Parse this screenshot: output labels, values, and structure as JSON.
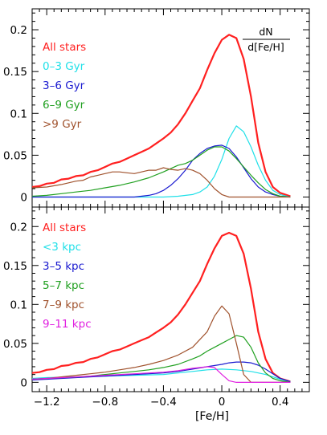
{
  "ylabel": {
    "numerator": "dN",
    "denominator": "d[Fe/H]"
  },
  "xlabel": "[Fe/H]",
  "chart_data": [
    {
      "type": "line",
      "xlim": [
        -1.3,
        0.6
      ],
      "ylim": [
        -0.012,
        0.225
      ],
      "xticks": [
        -1.2,
        -0.8,
        -0.4,
        0,
        0.4
      ],
      "xtick_labels": [
        "",
        "",
        "",
        "",
        ""
      ],
      "yticks": [
        0,
        0.05,
        0.1,
        0.15,
        0.2
      ],
      "ytick_labels": [
        "0",
        "0.05",
        "0.1",
        "0.15",
        "0.2"
      ],
      "legend": [
        {
          "label": "All stars",
          "color": "#ff2020"
        },
        {
          "label": "0–3 Gyr",
          "color": "#20e0e8"
        },
        {
          "label": "3–6 Gyr",
          "color": "#1a1ad0"
        },
        {
          "label": "6–9 Gyr",
          "color": "#20a020"
        },
        {
          "label": ">9 Gyr",
          "color": "#a0522d"
        }
      ],
      "series": [
        {
          "name": "All stars",
          "color": "#ff2020",
          "width": 2.2,
          "x": [
            -1.3,
            -1.25,
            -1.2,
            -1.15,
            -1.1,
            -1.05,
            -1.0,
            -0.95,
            -0.9,
            -0.85,
            -0.8,
            -0.75,
            -0.7,
            -0.65,
            -0.6,
            -0.55,
            -0.5,
            -0.45,
            -0.4,
            -0.35,
            -0.3,
            -0.25,
            -0.2,
            -0.15,
            -0.1,
            -0.05,
            0.0,
            0.05,
            0.1,
            0.15,
            0.2,
            0.25,
            0.3,
            0.35,
            0.4,
            0.47
          ],
          "y": [
            0.012,
            0.013,
            0.016,
            0.017,
            0.021,
            0.022,
            0.025,
            0.026,
            0.03,
            0.032,
            0.036,
            0.04,
            0.042,
            0.046,
            0.05,
            0.054,
            0.058,
            0.064,
            0.07,
            0.077,
            0.087,
            0.1,
            0.115,
            0.13,
            0.152,
            0.172,
            0.188,
            0.194,
            0.19,
            0.165,
            0.12,
            0.065,
            0.03,
            0.012,
            0.005,
            0.001
          ]
        },
        {
          "name": "0–3 Gyr",
          "color": "#20e0e8",
          "width": 1.2,
          "x": [
            -1.3,
            -0.4,
            -0.3,
            -0.2,
            -0.15,
            -0.1,
            -0.05,
            0.0,
            0.05,
            0.1,
            0.15,
            0.2,
            0.25,
            0.3,
            0.35,
            0.4,
            0.47
          ],
          "y": [
            0.0,
            0.0,
            0.001,
            0.003,
            0.006,
            0.012,
            0.025,
            0.045,
            0.07,
            0.085,
            0.078,
            0.06,
            0.038,
            0.02,
            0.008,
            0.003,
            0.0
          ]
        },
        {
          "name": "3–6 Gyr",
          "color": "#1a1ad0",
          "width": 1.2,
          "x": [
            -1.3,
            -0.6,
            -0.5,
            -0.45,
            -0.4,
            -0.35,
            -0.3,
            -0.25,
            -0.2,
            -0.15,
            -0.1,
            -0.05,
            0.0,
            0.05,
            0.1,
            0.15,
            0.2,
            0.25,
            0.3,
            0.35,
            0.4,
            0.47
          ],
          "y": [
            0.0,
            0.0,
            0.002,
            0.004,
            0.008,
            0.014,
            0.022,
            0.032,
            0.044,
            0.052,
            0.058,
            0.061,
            0.062,
            0.058,
            0.048,
            0.035,
            0.022,
            0.012,
            0.006,
            0.003,
            0.001,
            0.0
          ]
        },
        {
          "name": "6–9 Gyr",
          "color": "#20a020",
          "width": 1.2,
          "x": [
            -1.3,
            -1.2,
            -1.1,
            -1.0,
            -0.9,
            -0.8,
            -0.7,
            -0.6,
            -0.5,
            -0.4,
            -0.35,
            -0.3,
            -0.25,
            -0.2,
            -0.15,
            -0.1,
            -0.05,
            0.0,
            0.05,
            0.1,
            0.15,
            0.2,
            0.25,
            0.3,
            0.35,
            0.4,
            0.47
          ],
          "y": [
            0.001,
            0.002,
            0.004,
            0.006,
            0.008,
            0.011,
            0.014,
            0.018,
            0.023,
            0.03,
            0.034,
            0.038,
            0.04,
            0.044,
            0.05,
            0.056,
            0.06,
            0.06,
            0.055,
            0.046,
            0.036,
            0.026,
            0.017,
            0.009,
            0.004,
            0.001,
            0.0
          ]
        },
        {
          "name": ">9 Gyr",
          "color": "#a0522d",
          "width": 1.2,
          "x": [
            -1.3,
            -1.2,
            -1.1,
            -1.0,
            -0.95,
            -0.9,
            -0.85,
            -0.8,
            -0.75,
            -0.7,
            -0.65,
            -0.6,
            -0.55,
            -0.5,
            -0.45,
            -0.4,
            -0.35,
            -0.3,
            -0.25,
            -0.2,
            -0.15,
            -0.1,
            -0.05,
            0.0,
            0.05,
            0.47
          ],
          "y": [
            0.011,
            0.012,
            0.015,
            0.019,
            0.02,
            0.024,
            0.026,
            0.028,
            0.03,
            0.03,
            0.029,
            0.028,
            0.03,
            0.032,
            0.032,
            0.035,
            0.033,
            0.032,
            0.034,
            0.032,
            0.028,
            0.02,
            0.01,
            0.003,
            0.0,
            0.0
          ]
        }
      ]
    },
    {
      "type": "line",
      "xlim": [
        -1.3,
        0.6
      ],
      "ylim": [
        -0.012,
        0.225
      ],
      "xticks": [
        -1.2,
        -0.8,
        -0.4,
        0,
        0.4
      ],
      "xtick_labels": [
        "−1.2",
        "−0.8",
        "−0.4",
        "0",
        "0.4"
      ],
      "yticks": [
        0,
        0.05,
        0.1,
        0.15,
        0.2
      ],
      "ytick_labels": [
        "0",
        "0.05",
        "0.1",
        "0.15",
        "0.2"
      ],
      "legend": [
        {
          "label": "All stars",
          "color": "#ff2020"
        },
        {
          "label": "<3 kpc",
          "color": "#20e0e8"
        },
        {
          "label": "3–5 kpc",
          "color": "#1a1ad0"
        },
        {
          "label": "5–7 kpc",
          "color": "#20a020"
        },
        {
          "label": "7–9 kpc",
          "color": "#a0522d"
        },
        {
          "label": "9–11 kpc",
          "color": "#e020e0"
        }
      ],
      "series": [
        {
          "name": "All stars",
          "color": "#ff2020",
          "width": 2.2,
          "x": [
            -1.3,
            -1.25,
            -1.2,
            -1.15,
            -1.1,
            -1.05,
            -1.0,
            -0.95,
            -0.9,
            -0.85,
            -0.8,
            -0.75,
            -0.7,
            -0.65,
            -0.6,
            -0.55,
            -0.5,
            -0.45,
            -0.4,
            -0.35,
            -0.3,
            -0.25,
            -0.2,
            -0.15,
            -0.1,
            -0.05,
            0.0,
            0.05,
            0.1,
            0.15,
            0.2,
            0.25,
            0.3,
            0.35,
            0.4,
            0.47
          ],
          "y": [
            0.012,
            0.013,
            0.016,
            0.017,
            0.021,
            0.022,
            0.025,
            0.026,
            0.03,
            0.032,
            0.036,
            0.04,
            0.042,
            0.046,
            0.05,
            0.054,
            0.058,
            0.064,
            0.07,
            0.077,
            0.087,
            0.1,
            0.115,
            0.13,
            0.152,
            0.172,
            0.188,
            0.192,
            0.188,
            0.165,
            0.12,
            0.065,
            0.03,
            0.012,
            0.005,
            0.001
          ]
        },
        {
          "name": "<3 kpc",
          "color": "#20e0e8",
          "width": 1.2,
          "x": [
            -1.3,
            -1.2,
            -1.0,
            -0.8,
            -0.6,
            -0.4,
            -0.3,
            -0.2,
            -0.1,
            0.0,
            0.1,
            0.2,
            0.3,
            0.4,
            0.47
          ],
          "y": [
            0.005,
            0.006,
            0.007,
            0.008,
            0.009,
            0.01,
            0.012,
            0.014,
            0.016,
            0.017,
            0.016,
            0.014,
            0.01,
            0.004,
            0.001
          ]
        },
        {
          "name": "3–5 kpc",
          "color": "#1a1ad0",
          "width": 1.2,
          "x": [
            -1.3,
            -1.2,
            -1.0,
            -0.8,
            -0.6,
            -0.5,
            -0.4,
            -0.3,
            -0.2,
            -0.1,
            0.0,
            0.05,
            0.1,
            0.15,
            0.2,
            0.25,
            0.3,
            0.35,
            0.4,
            0.47
          ],
          "y": [
            0.003,
            0.004,
            0.006,
            0.008,
            0.01,
            0.011,
            0.012,
            0.014,
            0.017,
            0.02,
            0.023,
            0.025,
            0.026,
            0.026,
            0.025,
            0.022,
            0.017,
            0.011,
            0.005,
            0.001
          ]
        },
        {
          "name": "5–7 kpc",
          "color": "#20a020",
          "width": 1.2,
          "x": [
            -1.3,
            -1.2,
            -1.1,
            -1.0,
            -0.9,
            -0.8,
            -0.7,
            -0.6,
            -0.5,
            -0.4,
            -0.3,
            -0.2,
            -0.15,
            -0.1,
            -0.05,
            0.0,
            0.05,
            0.1,
            0.15,
            0.2,
            0.25,
            0.3,
            0.35,
            0.4,
            0.47
          ],
          "y": [
            0.004,
            0.005,
            0.006,
            0.007,
            0.008,
            0.01,
            0.012,
            0.014,
            0.016,
            0.019,
            0.023,
            0.03,
            0.034,
            0.04,
            0.045,
            0.05,
            0.055,
            0.06,
            0.058,
            0.045,
            0.025,
            0.012,
            0.005,
            0.002,
            0.0
          ]
        },
        {
          "name": "7–9 kpc",
          "color": "#a0522d",
          "width": 1.2,
          "x": [
            -1.3,
            -1.2,
            -1.1,
            -1.0,
            -0.9,
            -0.8,
            -0.7,
            -0.6,
            -0.5,
            -0.4,
            -0.3,
            -0.2,
            -0.1,
            -0.05,
            0.0,
            0.05,
            0.1,
            0.15,
            0.2,
            0.47
          ],
          "y": [
            0.004,
            0.005,
            0.007,
            0.009,
            0.011,
            0.013,
            0.016,
            0.019,
            0.023,
            0.028,
            0.035,
            0.045,
            0.065,
            0.085,
            0.098,
            0.088,
            0.05,
            0.01,
            0.0,
            0.0
          ]
        },
        {
          "name": "9–11 kpc",
          "color": "#e020e0",
          "width": 1.2,
          "x": [
            -1.3,
            -1.2,
            -1.0,
            -0.8,
            -0.6,
            -0.4,
            -0.3,
            -0.2,
            -0.1,
            -0.05,
            0.0,
            0.05,
            0.1,
            0.47
          ],
          "y": [
            0.004,
            0.005,
            0.007,
            0.009,
            0.011,
            0.013,
            0.015,
            0.018,
            0.02,
            0.019,
            0.01,
            0.002,
            0.0,
            0.0
          ]
        }
      ]
    }
  ]
}
